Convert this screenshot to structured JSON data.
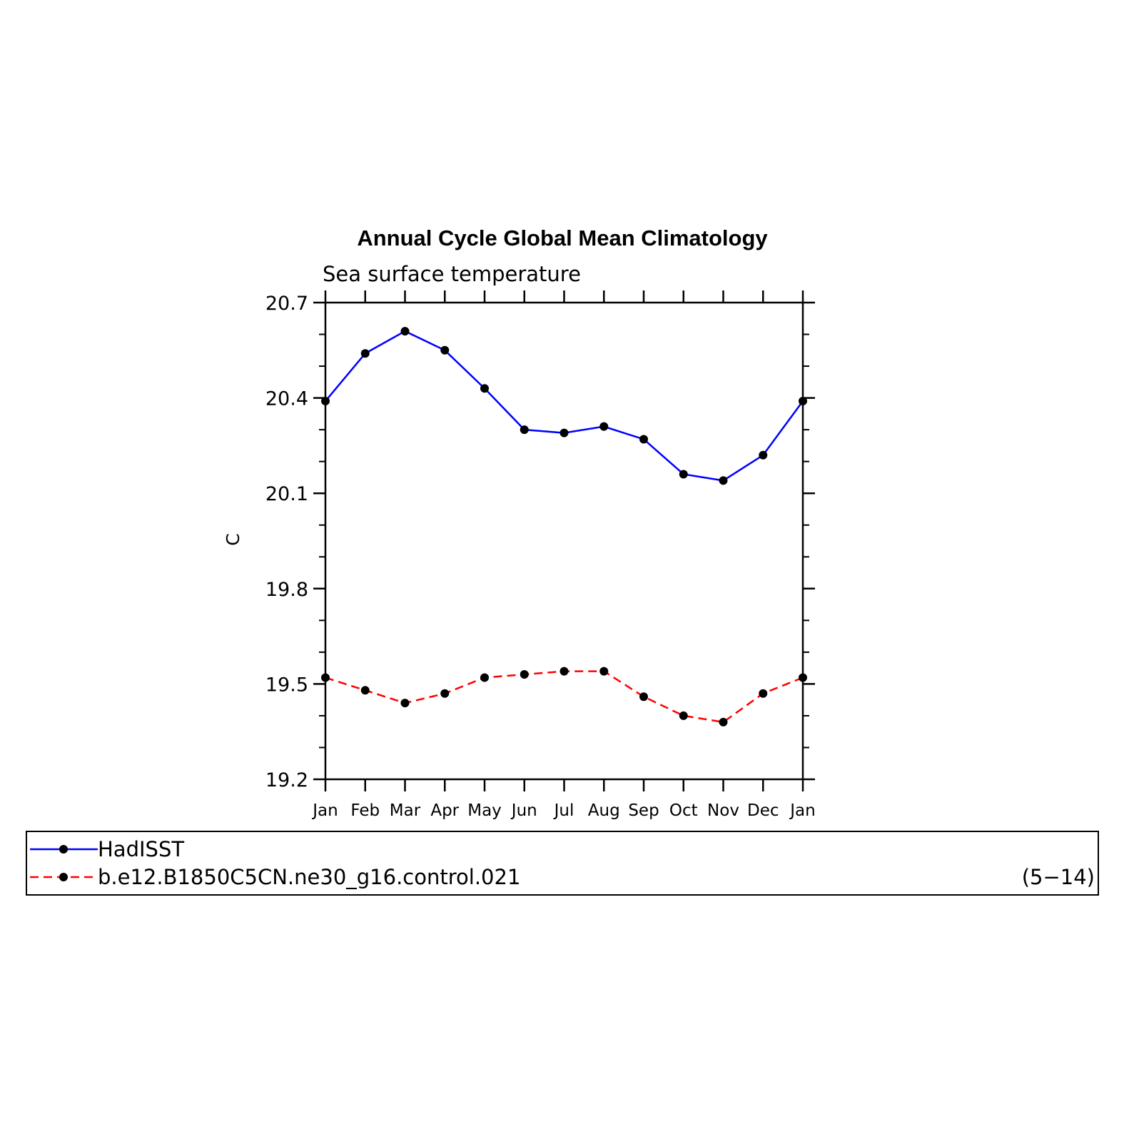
{
  "chart_data": {
    "type": "line",
    "title": "Annual Cycle Global Mean Climatology",
    "subtitle": "Sea surface temperature",
    "xlabel": "",
    "ylabel": "C",
    "categories": [
      "Jan",
      "Feb",
      "Mar",
      "Apr",
      "May",
      "Jun",
      "Jul",
      "Aug",
      "Sep",
      "Oct",
      "Nov",
      "Dec",
      "Jan"
    ],
    "ylim": [
      19.2,
      20.7
    ],
    "yticks": [
      19.2,
      19.5,
      19.8,
      20.1,
      20.4,
      20.7
    ],
    "ytick_labels": [
      "19.2",
      "19.5",
      "19.8",
      "20.1",
      "20.4",
      "20.7"
    ],
    "grid": false,
    "legend_position": "bottom",
    "series": [
      {
        "name": "HadISST",
        "color": "#0000ff",
        "style": "solid",
        "marker": "dot",
        "values": [
          20.39,
          20.54,
          20.61,
          20.55,
          20.43,
          20.3,
          20.29,
          20.31,
          20.27,
          20.16,
          20.14,
          20.22,
          20.39
        ]
      },
      {
        "name": "b.e12.B1850C5CN.ne30_g16.control.021",
        "color": "#ff0000",
        "style": "dashed",
        "marker": "dot",
        "values": [
          19.52,
          19.48,
          19.44,
          19.47,
          19.52,
          19.53,
          19.54,
          19.54,
          19.46,
          19.4,
          19.38,
          19.47,
          19.52
        ]
      }
    ],
    "legend_note": "(5−14)"
  }
}
